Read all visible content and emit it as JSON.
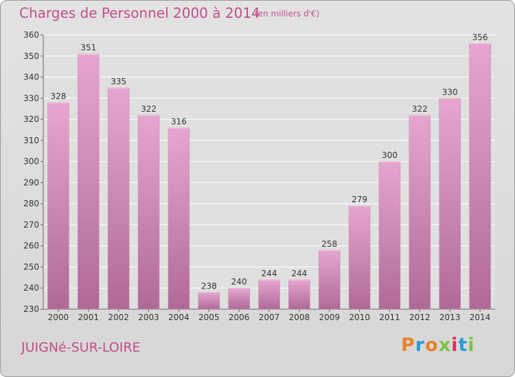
{
  "header": {
    "title": "Charges de Personnel 2000 à 2014",
    "subtitle": "(en milliers d'€)"
  },
  "footer": {
    "place": "JUIGNé-SUR-LOIRE",
    "logo_text": "Proxiti"
  },
  "colors": {
    "title": "#c24e8a",
    "bar_top": "#e6a6d0",
    "bar_bottom": "#b06a98",
    "logo": [
      "#e8822a",
      "#2a9ad8",
      "#e8822a",
      "#7cc242",
      "#e03060",
      "#2a9ad8",
      "#7cc242"
    ]
  },
  "chart_data": {
    "type": "bar",
    "title": "Charges de Personnel 2000 à 2014",
    "subtitle": "(en milliers d'€)",
    "categories": [
      "2000",
      "2001",
      "2002",
      "2003",
      "2004",
      "2005",
      "2006",
      "2007",
      "2008",
      "2009",
      "2010",
      "2011",
      "2012",
      "2013",
      "2014"
    ],
    "values": [
      328,
      351,
      335,
      322,
      316,
      238,
      240,
      244,
      244,
      258,
      279,
      300,
      322,
      330,
      356
    ],
    "ylim": [
      230,
      360
    ],
    "yticks": [
      230,
      240,
      250,
      260,
      270,
      280,
      290,
      300,
      310,
      320,
      330,
      340,
      350,
      360
    ],
    "grid": true,
    "legend": "none"
  }
}
